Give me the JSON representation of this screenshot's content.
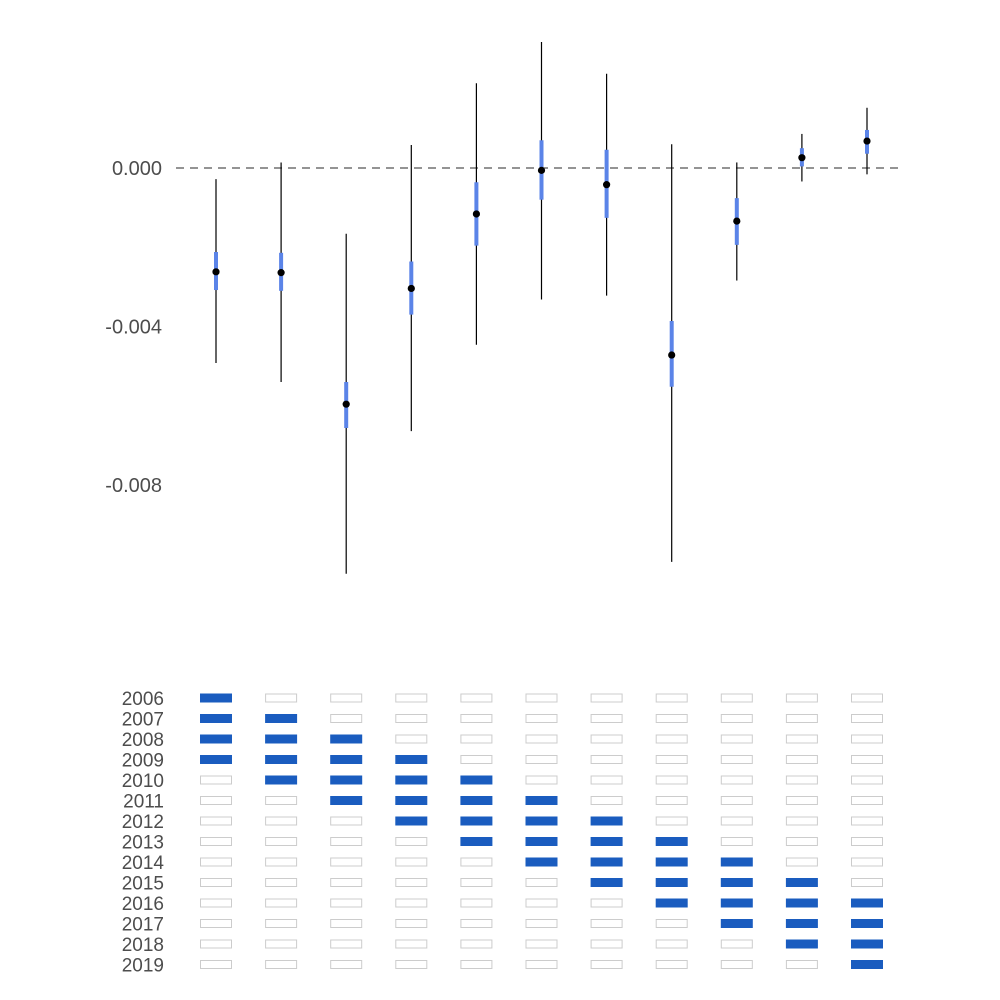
{
  "chart_data": [
    {
      "type": "scatter",
      "title": "",
      "xlabel": "",
      "ylabel": "",
      "ylim": [
        -0.0102,
        0.0032
      ],
      "y_ticks": [
        0.0,
        -0.004,
        -0.008
      ],
      "y_tick_labels": [
        "0.000",
        "-0.004",
        "-0.008"
      ],
      "reference_line": 0.0,
      "grid": false,
      "legend": "none",
      "colors": {
        "point": "#000000",
        "inner_interval": "#5b84e8",
        "outer_interval": "#000000",
        "reference_line": "#555555"
      },
      "estimates": [
        {
          "estimate": -0.00262,
          "inner": [
            -0.00308,
            -0.00212
          ],
          "outer": [
            -0.00492,
            -0.00028
          ]
        },
        {
          "estimate": -0.00264,
          "inner": [
            -0.0031,
            -0.00214
          ],
          "outer": [
            -0.0054,
            0.00014
          ]
        },
        {
          "estimate": -0.00596,
          "inner": [
            -0.00656,
            -0.0054
          ],
          "outer": [
            -0.01024,
            -0.00166
          ]
        },
        {
          "estimate": -0.00304,
          "inner": [
            -0.0037,
            -0.00236
          ],
          "outer": [
            -0.00664,
            0.00058
          ]
        },
        {
          "estimate": -0.00116,
          "inner": [
            -0.00196,
            -0.00036
          ],
          "outer": [
            -0.00446,
            0.00214
          ]
        },
        {
          "estimate": -6e-05,
          "inner": [
            -0.0008,
            0.0007
          ],
          "outer": [
            -0.00332,
            0.00318
          ]
        },
        {
          "estimate": -0.00042,
          "inner": [
            -0.00126,
            0.00046
          ],
          "outer": [
            -0.00322,
            0.00238
          ]
        },
        {
          "estimate": -0.00472,
          "inner": [
            -0.00552,
            -0.00386
          ],
          "outer": [
            -0.00994,
            0.0006
          ]
        },
        {
          "estimate": -0.00134,
          "inner": [
            -0.00194,
            -0.00076
          ],
          "outer": [
            -0.00284,
            0.00014
          ]
        },
        {
          "estimate": 0.00026,
          "inner": [
            4e-05,
            0.0005
          ],
          "outer": [
            -0.00034,
            0.00086
          ]
        },
        {
          "estimate": 0.00068,
          "inner": [
            0.00036,
            0.00096
          ],
          "outer": [
            -0.00016,
            0.00152
          ]
        }
      ]
    },
    {
      "type": "heatmap",
      "rows": [
        "2006",
        "2007",
        "2008",
        "2009",
        "2010",
        "2011",
        "2012",
        "2013",
        "2014",
        "2015",
        "2016",
        "2017",
        "2018",
        "2019"
      ],
      "columns": 11,
      "colors": {
        "filled": "#1a5cbf",
        "empty_stroke": "#cccccc"
      },
      "matrix": [
        [
          1,
          0,
          0,
          0,
          0,
          0,
          0,
          0,
          0,
          0,
          0
        ],
        [
          1,
          1,
          0,
          0,
          0,
          0,
          0,
          0,
          0,
          0,
          0
        ],
        [
          1,
          1,
          1,
          0,
          0,
          0,
          0,
          0,
          0,
          0,
          0
        ],
        [
          1,
          1,
          1,
          1,
          0,
          0,
          0,
          0,
          0,
          0,
          0
        ],
        [
          0,
          1,
          1,
          1,
          1,
          0,
          0,
          0,
          0,
          0,
          0
        ],
        [
          0,
          0,
          1,
          1,
          1,
          1,
          0,
          0,
          0,
          0,
          0
        ],
        [
          0,
          0,
          0,
          1,
          1,
          1,
          1,
          0,
          0,
          0,
          0
        ],
        [
          0,
          0,
          0,
          0,
          1,
          1,
          1,
          1,
          0,
          0,
          0
        ],
        [
          0,
          0,
          0,
          0,
          0,
          1,
          1,
          1,
          1,
          0,
          0
        ],
        [
          0,
          0,
          0,
          0,
          0,
          0,
          1,
          1,
          1,
          1,
          0
        ],
        [
          0,
          0,
          0,
          0,
          0,
          0,
          0,
          1,
          1,
          1,
          1
        ],
        [
          0,
          0,
          0,
          0,
          0,
          0,
          0,
          0,
          1,
          1,
          1
        ],
        [
          0,
          0,
          0,
          0,
          0,
          0,
          0,
          0,
          0,
          1,
          1
        ],
        [
          0,
          0,
          0,
          0,
          0,
          0,
          0,
          0,
          0,
          0,
          1
        ]
      ]
    }
  ]
}
